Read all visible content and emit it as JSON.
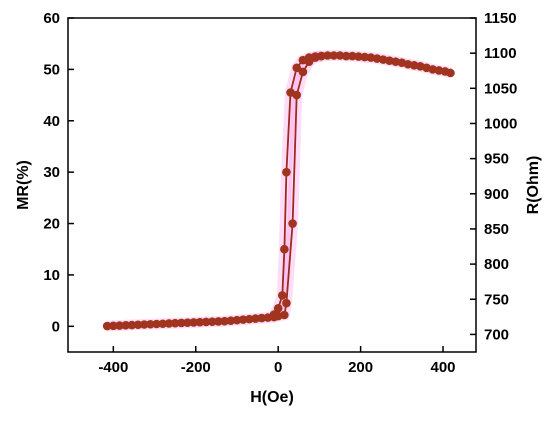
{
  "chart_data": {
    "type": "scatter",
    "title": "",
    "xlabel": "H(Oe)",
    "ylabel": "MR(%)",
    "y2label": "R(Ohm)",
    "xlim": [
      -510,
      480
    ],
    "ylim": [
      -5,
      60
    ],
    "y2lim": [
      675,
      1150
    ],
    "xticks": [
      -400,
      -200,
      0,
      200,
      400
    ],
    "yticks": [
      0,
      10,
      20,
      30,
      40,
      50,
      60
    ],
    "y2ticks": [
      700,
      750,
      800,
      850,
      900,
      950,
      1000,
      1050,
      1100,
      1150
    ],
    "grid": false,
    "legend": "none",
    "marker_color": "#a0341e",
    "line_color": "#9c2b1e",
    "glow_color": "#ff66dd",
    "series": [
      {
        "x": [
          -415,
          -400,
          -385,
          -370,
          -355,
          -340,
          -325,
          -310,
          -295,
          -280,
          -265,
          -250,
          -235,
          -220,
          -205,
          -190,
          -175,
          -160,
          -145,
          -130,
          -115,
          -100,
          -85,
          -70,
          -55,
          -40,
          -25,
          -10,
          0,
          15,
          20,
          35,
          45,
          60,
          75,
          90,
          105,
          120,
          135,
          150,
          165,
          180,
          195,
          210,
          225,
          240,
          255,
          270,
          285,
          300,
          315,
          330,
          345,
          360,
          375,
          390,
          405,
          418
        ],
        "y": [
          0.05,
          0.1,
          0.15,
          0.2,
          0.25,
          0.3,
          0.35,
          0.4,
          0.45,
          0.5,
          0.55,
          0.6,
          0.65,
          0.7,
          0.75,
          0.8,
          0.85,
          0.9,
          0.95,
          1.0,
          1.1,
          1.2,
          1.3,
          1.4,
          1.5,
          1.6,
          1.7,
          1.8,
          2.0,
          2.2,
          4.5,
          20,
          45,
          49.5,
          51.5,
          52.3,
          52.6,
          52.7,
          52.7,
          52.7,
          52.6,
          52.6,
          52.5,
          52.4,
          52.3,
          52.1,
          51.9,
          51.7,
          51.5,
          51.3,
          51.0,
          50.8,
          50.6,
          50.3,
          50.0,
          49.8,
          49.6,
          49.3
        ]
      },
      {
        "x": [
          -10,
          0,
          10,
          15,
          20,
          30,
          45,
          60,
          75,
          90,
          105
        ],
        "y": [
          2.3,
          3.5,
          6.0,
          15,
          30,
          45.5,
          50.3,
          51.8,
          52.3,
          52.5,
          52.6
        ]
      }
    ]
  }
}
